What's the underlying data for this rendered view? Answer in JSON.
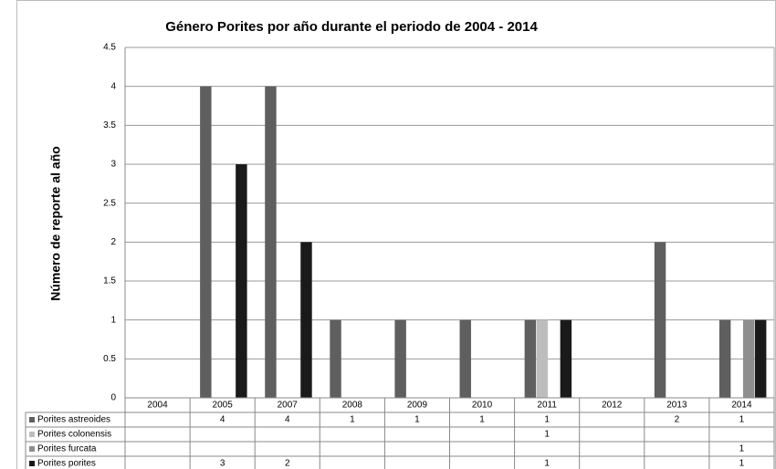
{
  "chart_data": {
    "type": "bar",
    "title": "Género Porites por año durante el periodo de 2004 - 2014",
    "y_label": "Número de reporte al año",
    "categories": [
      "2004",
      "2005",
      "2007",
      "2008",
      "2009",
      "2010",
      "2011",
      "2012",
      "2013",
      "2014"
    ],
    "series": [
      {
        "name": "Porites astreoides",
        "color": "#5f5f5f",
        "values": [
          null,
          4,
          4,
          1,
          1,
          1,
          1,
          null,
          2,
          1
        ]
      },
      {
        "name": "Porites colonensis",
        "color": "#bdbdbd",
        "values": [
          null,
          null,
          null,
          null,
          null,
          null,
          1,
          null,
          null,
          null
        ]
      },
      {
        "name": "Porites furcata",
        "color": "#8e8e8e",
        "values": [
          null,
          null,
          null,
          null,
          null,
          null,
          null,
          null,
          null,
          1
        ]
      },
      {
        "name": "Porites porites",
        "color": "#1a1a1a",
        "values": [
          null,
          3,
          2,
          null,
          null,
          null,
          1,
          null,
          null,
          1
        ]
      }
    ],
    "ylim": [
      0,
      4.5
    ],
    "yticks": [
      0,
      0.5,
      1,
      1.5,
      2,
      2.5,
      3,
      3.5,
      4,
      4.5
    ],
    "grid": true,
    "data_table": true
  }
}
